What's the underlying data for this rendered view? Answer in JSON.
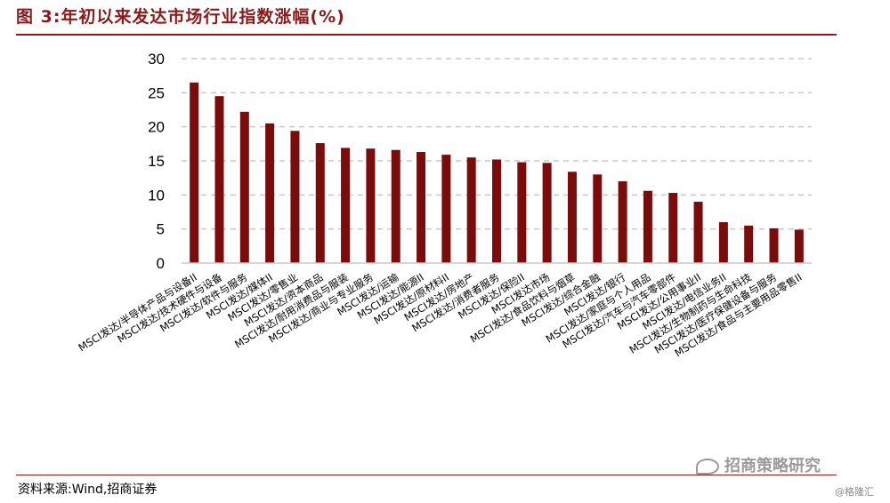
{
  "figure": {
    "title": "图 3:年初以来发达市场行业指数涨幅(%)",
    "source": "资料来源:Wind,招商证券",
    "watermark": "招商策略研究",
    "watermark2": "@格隆汇"
  },
  "colors": {
    "bar": "#7b0c0c",
    "accent": "#8b1a1a",
    "grid": "#c8c8c8"
  },
  "chart_data": {
    "type": "bar",
    "title": "",
    "xlabel": "",
    "ylabel": "",
    "ylim": [
      0,
      30
    ],
    "yticks": [
      0,
      5,
      10,
      15,
      20,
      25,
      30
    ],
    "grid": true,
    "legend": "none",
    "categories": [
      "MSCI发达/半导体产品与设备II",
      "MSCI发达/技术硬件与设备",
      "MSCI发达/软件与服务",
      "MSCI发达/媒体II",
      "MSCI发达/零售业",
      "MSCI发达/资本商品",
      "MSCI发达/耐用消费品与服装",
      "MSCI发达/商业与专业服务",
      "MSCI发达/运输",
      "MSCI发达/能源II",
      "MSCI发达/原材料II",
      "MSCI发达/房地产",
      "MSCI发达/消费者服务",
      "MSCI发达/保险II",
      "MSCI发达市场",
      "MSCI发达/食品饮料与烟草",
      "MSCI发达/综合金融",
      "MSCI发达/银行",
      "MSCI发达/家庭与个人用品",
      "MSCI发达/汽车与汽车零部件",
      "MSCI发达/公用事业II",
      "MSCI发达/电信业务II",
      "MSCI发达/生物制药与生命科技",
      "MSCI发达/医疗保健设备与服务",
      "MSCI发达/食品与主要用品零售II"
    ],
    "values": [
      26.5,
      24.5,
      22.2,
      20.5,
      19.4,
      17.6,
      16.9,
      16.8,
      16.6,
      16.3,
      15.9,
      15.5,
      15.2,
      14.8,
      14.7,
      13.4,
      13.0,
      12.0,
      10.6,
      10.3,
      9.0,
      6.0,
      5.5,
      5.1,
      4.9
    ]
  }
}
